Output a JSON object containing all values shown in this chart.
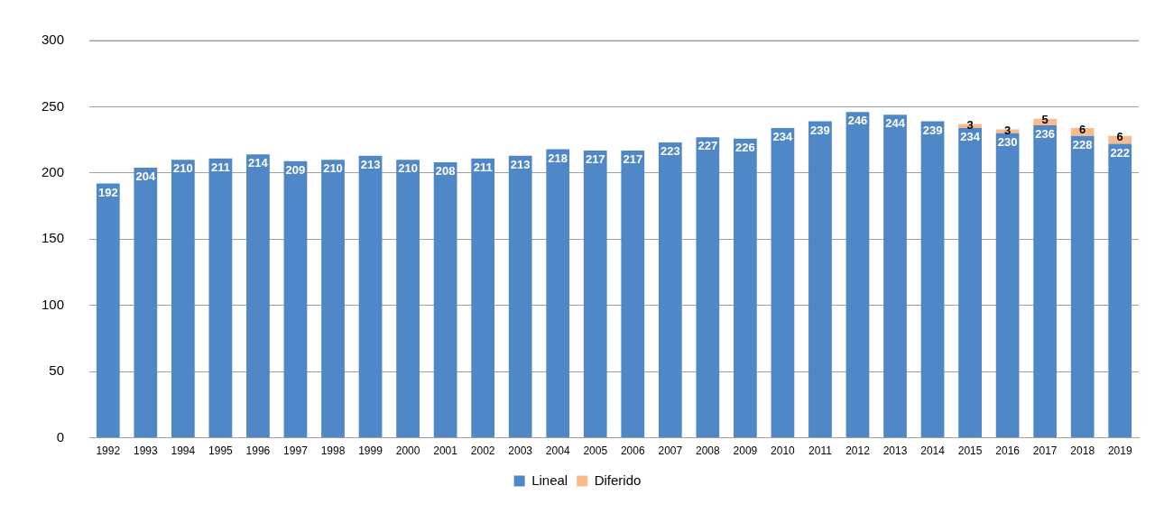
{
  "chart_data": {
    "type": "bar",
    "stacked": true,
    "categories": [
      "1992",
      "1993",
      "1994",
      "1995",
      "1996",
      "1997",
      "1998",
      "1999",
      "2000",
      "2001",
      "2002",
      "2003",
      "2004",
      "2005",
      "2006",
      "2007",
      "2008",
      "2009",
      "2010",
      "2011",
      "2012",
      "2013",
      "2014",
      "2015",
      "2016",
      "2017",
      "2018",
      "2019"
    ],
    "series": [
      {
        "name": "Lineal",
        "color": "#4f87c7",
        "values": [
          192,
          204,
          210,
          211,
          214,
          209,
          210,
          213,
          210,
          208,
          211,
          213,
          218,
          217,
          217,
          223,
          227,
          226,
          234,
          239,
          246,
          244,
          239,
          234,
          230,
          236,
          228,
          222
        ]
      },
      {
        "name": "Diferido",
        "color": "#f9bb8b",
        "values": [
          null,
          null,
          null,
          null,
          null,
          null,
          null,
          null,
          null,
          null,
          null,
          null,
          null,
          null,
          null,
          null,
          null,
          null,
          null,
          null,
          null,
          null,
          null,
          3,
          3,
          5,
          6,
          6
        ]
      }
    ],
    "ylim": [
      0,
      300
    ],
    "yticks": [
      0,
      50,
      100,
      150,
      200,
      250,
      300
    ],
    "grid": "y",
    "legend": "bottom",
    "data_labels": true
  }
}
